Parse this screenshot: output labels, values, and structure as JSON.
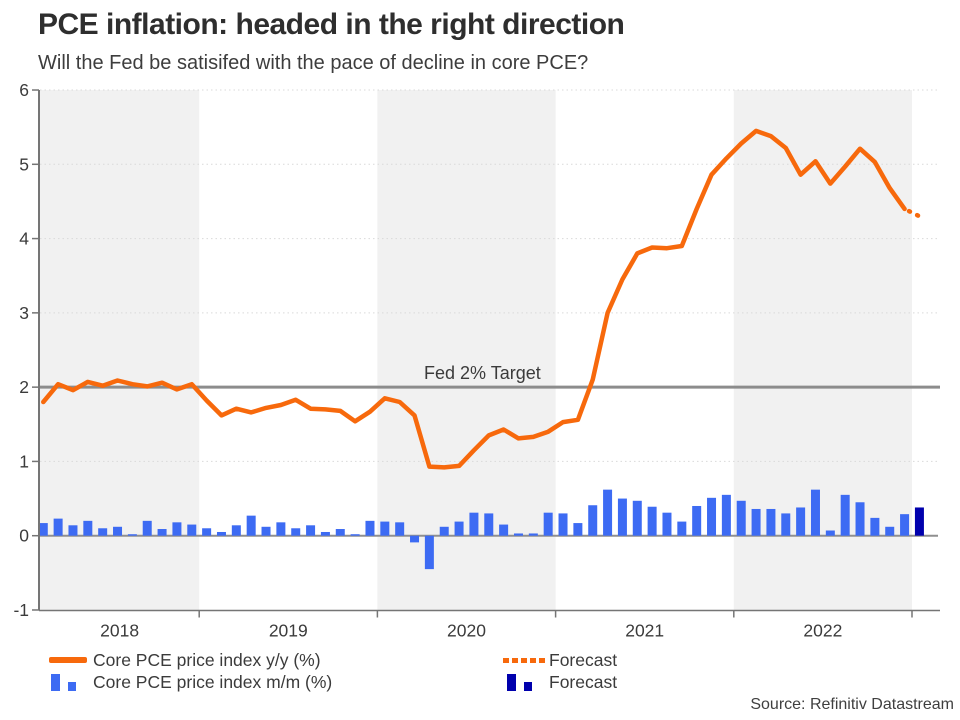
{
  "header": {
    "title": "PCE inflation: headed in the right direction",
    "subtitle": "Will the Fed be satisifed with the pace of decline in core PCE?"
  },
  "legend": {
    "yoy": "Core PCE price index y/y (%)",
    "mm": "Core PCE price index m/m (%)",
    "forecast_line": "Forecast",
    "forecast_bar": "Forecast"
  },
  "source": "Source: Refinitiv Datastream",
  "colors": {
    "line_orange": "#f7690c",
    "bar_blue": "#3d6bf3",
    "forecast_navy": "#0000ad",
    "target_gray": "#8c8c8c",
    "band_gray": "#f1f1f1",
    "grid_gray": "#d9d9d9",
    "axis_gray": "#757575",
    "zero_line_gray": "#8f8f8f",
    "text_gray": "#3b3b3b"
  },
  "chart_data": {
    "type": "combo line+bar, monthly",
    "x": {
      "start_month": "2018-02",
      "last_actual_month": "2022-12",
      "forecast_month": "2023-01",
      "years": [
        2018,
        2019,
        2020,
        2021,
        2022
      ],
      "shaded_years": [
        2018,
        2020,
        2022
      ]
    },
    "y": {
      "ticks": [
        6,
        5,
        4,
        3,
        2,
        1,
        0,
        -1
      ],
      "lim": [
        -1,
        6
      ],
      "grid": "dotted"
    },
    "target": {
      "value": 2,
      "label": "Fed 2% Target"
    },
    "series": [
      {
        "name": "Core PCE price index y/y (%)",
        "type": "line",
        "style": "solid",
        "color": "#f7690c",
        "values": [
          1.8,
          2.04,
          1.96,
          2.07,
          2.02,
          2.09,
          2.04,
          2.01,
          2.06,
          1.97,
          2.04,
          1.82,
          1.62,
          1.71,
          1.66,
          1.72,
          1.76,
          1.83,
          1.71,
          1.7,
          1.68,
          1.54,
          1.67,
          1.85,
          1.8,
          1.62,
          0.93,
          0.92,
          0.94,
          1.15,
          1.35,
          1.43,
          1.31,
          1.33,
          1.4,
          1.53,
          1.56,
          2.1,
          3.0,
          3.45,
          3.8,
          3.88,
          3.87,
          3.9,
          4.4,
          4.86,
          5.08,
          5.28,
          5.45,
          5.38,
          5.22,
          4.86,
          5.04,
          4.74,
          4.97,
          5.21,
          5.03,
          4.68,
          4.4
        ]
      },
      {
        "name": "Forecast",
        "type": "line",
        "style": "dotted",
        "color": "#f7690c",
        "values": [
          4.3
        ]
      },
      {
        "name": "Core PCE price index m/m (%)",
        "type": "bar",
        "color": "#3d6bf3",
        "values": [
          0.17,
          0.23,
          0.14,
          0.2,
          0.1,
          0.12,
          0.02,
          0.2,
          0.09,
          0.18,
          0.15,
          0.1,
          0.05,
          0.14,
          0.27,
          0.12,
          0.18,
          0.1,
          0.14,
          0.05,
          0.09,
          0.02,
          0.2,
          0.19,
          0.18,
          -0.09,
          -0.45,
          0.12,
          0.19,
          0.31,
          0.3,
          0.15,
          0.03,
          0.03,
          0.31,
          0.3,
          0.17,
          0.41,
          0.62,
          0.5,
          0.47,
          0.39,
          0.31,
          0.19,
          0.4,
          0.51,
          0.55,
          0.47,
          0.36,
          0.36,
          0.3,
          0.38,
          0.62,
          0.07,
          0.55,
          0.45,
          0.24,
          0.12,
          0.29
        ]
      },
      {
        "name": "Forecast",
        "type": "bar",
        "color": "#0000ad",
        "values": [
          0.38
        ]
      }
    ]
  }
}
